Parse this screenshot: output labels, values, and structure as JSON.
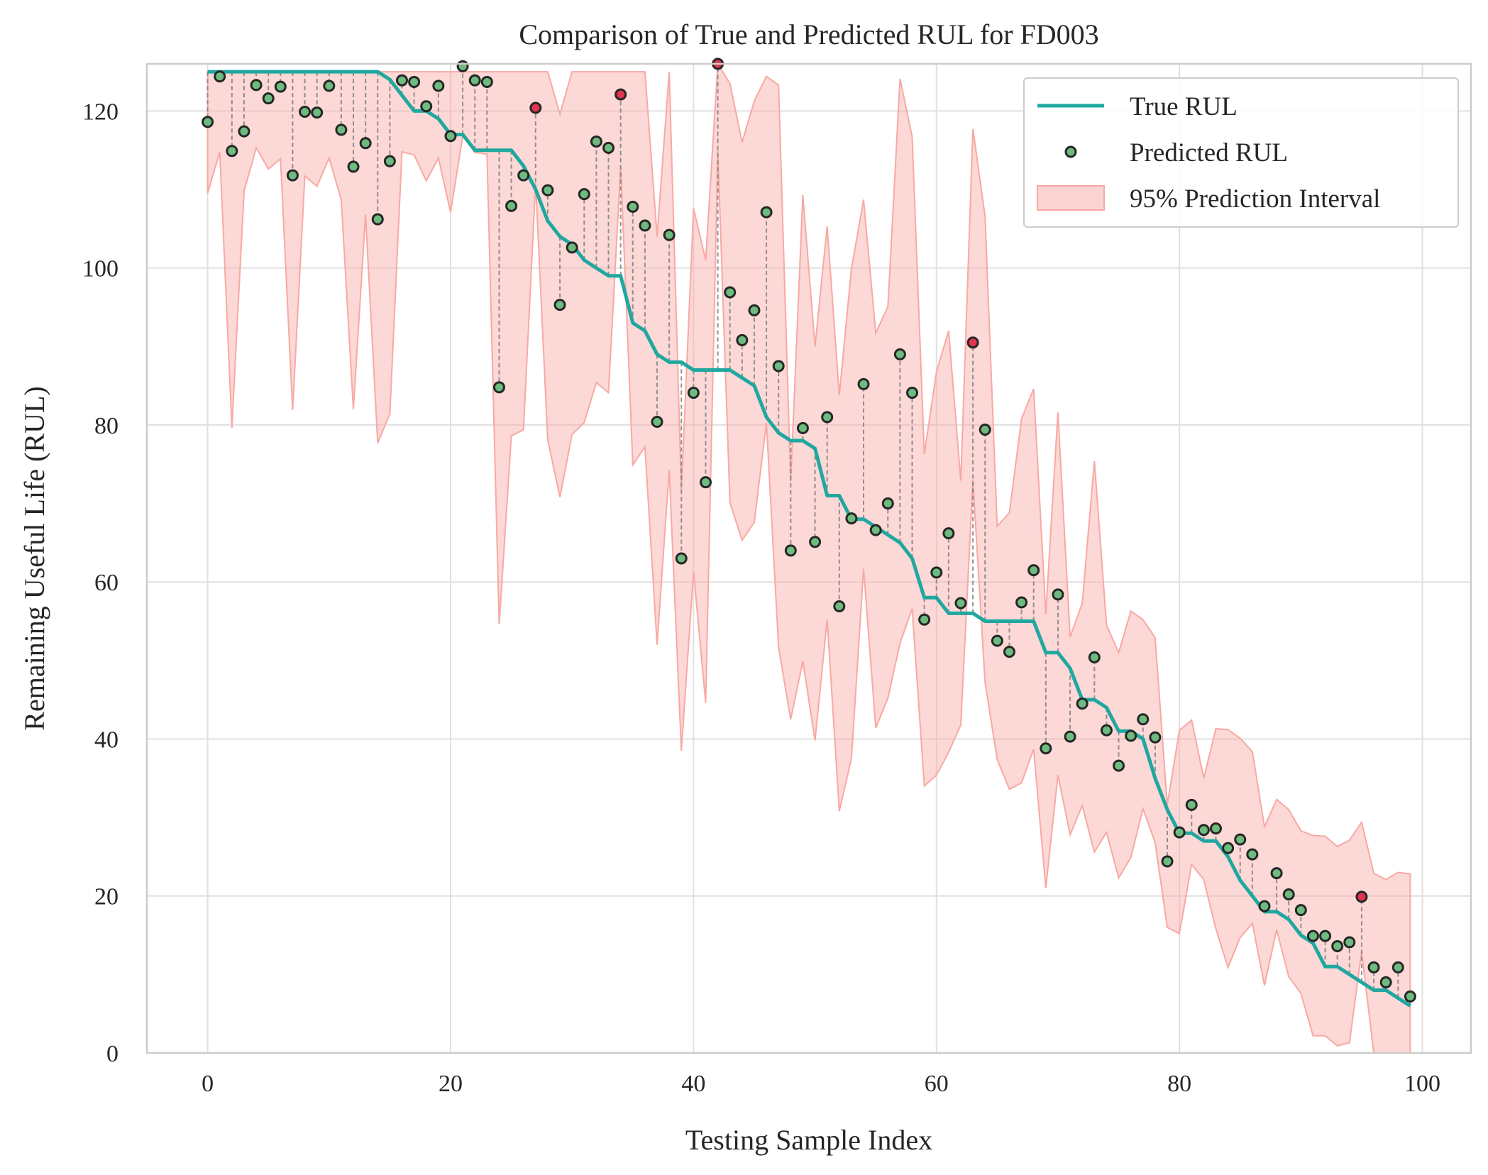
{
  "chart_data": {
    "type": "line",
    "title": "Comparison of True and Predicted RUL for FD003",
    "xlabel": "Testing Sample Index",
    "ylabel": "Remaining Useful Life (RUL)",
    "xlim": [
      -5,
      104
    ],
    "ylim": [
      0,
      126
    ],
    "xticks": [
      0,
      20,
      40,
      60,
      80,
      100
    ],
    "yticks": [
      0,
      20,
      40,
      60,
      80,
      100,
      120
    ],
    "grid": true,
    "legend_position": "top-right",
    "legend": [
      "True RUL",
      "Predicted RUL",
      "95% Prediction Interval"
    ],
    "colors": {
      "true": "#20a8a0",
      "predicted": "#6dbb7f",
      "outlier": "#e0344f",
      "interval": "#f8a9a3",
      "marker_edge": "#262626",
      "grid": "#e0e0e0",
      "frame": "#cccccc"
    },
    "x": [
      0,
      1,
      2,
      3,
      4,
      5,
      6,
      7,
      8,
      9,
      10,
      11,
      12,
      13,
      14,
      15,
      16,
      17,
      18,
      19,
      20,
      21,
      22,
      23,
      24,
      25,
      26,
      27,
      28,
      29,
      30,
      31,
      32,
      33,
      34,
      35,
      36,
      37,
      38,
      39,
      40,
      41,
      42,
      43,
      44,
      45,
      46,
      47,
      48,
      49,
      50,
      51,
      52,
      53,
      54,
      55,
      56,
      57,
      58,
      59,
      60,
      61,
      62,
      63,
      64,
      65,
      66,
      67,
      68,
      69,
      70,
      71,
      72,
      73,
      74,
      75,
      76,
      77,
      78,
      79,
      80,
      81,
      82,
      83,
      84,
      85,
      86,
      87,
      88,
      89,
      90,
      91,
      92,
      93,
      94,
      95,
      96,
      97,
      98,
      99
    ],
    "series": [
      {
        "name": "True RUL",
        "values": [
          125,
          125,
          125,
          125,
          125,
          125,
          125,
          125,
          125,
          125,
          125,
          125,
          125,
          125,
          125,
          124,
          122,
          120,
          120,
          119,
          117,
          117,
          115,
          115,
          115,
          115,
          113,
          110,
          106,
          104,
          103,
          101,
          100,
          99,
          99,
          93,
          92,
          89,
          88,
          88,
          87,
          87,
          87,
          87,
          86,
          85,
          81,
          79,
          78,
          78,
          77,
          71,
          71,
          68,
          68,
          67,
          66,
          65,
          63,
          58,
          58,
          56,
          56,
          56,
          55,
          55,
          55,
          55,
          55,
          51,
          51,
          49,
          45,
          45,
          44,
          41,
          41,
          40,
          35,
          31,
          28,
          28,
          27,
          27,
          25,
          22,
          20,
          18,
          18,
          17,
          15,
          14,
          11,
          11,
          10,
          9,
          8,
          8,
          7,
          6
        ]
      },
      {
        "name": "Predicted RUL",
        "values": [
          118.6,
          124.4,
          114.9,
          117.4,
          123.3,
          121.6,
          123.1,
          111.8,
          119.9,
          119.8,
          123.2,
          117.6,
          112.9,
          115.9,
          106.2,
          113.6,
          123.9,
          123.7,
          120.6,
          123.2,
          116.8,
          125.7,
          123.9,
          123.7,
          84.8,
          107.9,
          111.8,
          120.4,
          109.9,
          95.3,
          102.6,
          109.4,
          116.1,
          115.3,
          122.1,
          107.8,
          105.4,
          80.4,
          104.2,
          63.0,
          84.1,
          72.7,
          126.0,
          96.9,
          90.8,
          94.6,
          107.1,
          87.5,
          64.0,
          79.6,
          65.1,
          81.0,
          56.9,
          68.1,
          85.2,
          66.6,
          70.0,
          89.0,
          84.1,
          55.2,
          61.2,
          66.2,
          57.3,
          90.5,
          79.4,
          52.5,
          51.1,
          57.4,
          61.5,
          38.8,
          58.4,
          40.3,
          44.5,
          50.4,
          41.1,
          36.6,
          40.4,
          42.5,
          40.2,
          24.4,
          28.1,
          31.6,
          28.4,
          28.6,
          26.1,
          27.2,
          25.3,
          18.7,
          22.9,
          20.2,
          18.2,
          14.9,
          14.9,
          13.6,
          14.1,
          19.9,
          10.9,
          9.0,
          10.9,
          7.2
        ]
      },
      {
        "name": "95% Prediction Interval",
        "lower": [
          109.5,
          114.8,
          79.6,
          109.8,
          115.3,
          112.6,
          113.9,
          81.9,
          111.7,
          110.4,
          114.0,
          108.7,
          82.0,
          106.8,
          77.7,
          81.4,
          114.8,
          114.4,
          111.1,
          114.0,
          107.1,
          116.8,
          114.7,
          114.5,
          54.6,
          78.6,
          79.4,
          110.8,
          78.1,
          70.8,
          78.8,
          80.3,
          85.4,
          84.1,
          112.9,
          74.9,
          77.2,
          52.0,
          74.3,
          38.5,
          61.3,
          44.6,
          115.0,
          70.1,
          65.3,
          67.6,
          80.3,
          51.7,
          42.5,
          49.9,
          39.8,
          55.2,
          30.8,
          37.5,
          61.7,
          41.4,
          45.2,
          52.2,
          56.6,
          34.0,
          35.4,
          38.3,
          41.8,
          73.0,
          47.2,
          37.4,
          33.6,
          34.4,
          38.7,
          21.0,
          35.4,
          27.8,
          31.5,
          25.6,
          28.1,
          22.3,
          24.9,
          31.1,
          26.8,
          16.0,
          15.2,
          24.0,
          22.1,
          15.8,
          10.9,
          14.7,
          16.5,
          8.6,
          15.7,
          9.7,
          7.6,
          2.2,
          2.2,
          0.9,
          1.3,
          12.9,
          0.0,
          0.0,
          0.0,
          0.0
        ],
        "upper": [
          125.0,
          125.0,
          125.0,
          125.0,
          125.0,
          125.0,
          125.0,
          125.0,
          125.0,
          125.0,
          125.0,
          125.0,
          125.0,
          125.0,
          125.0,
          125.0,
          125.0,
          125.0,
          125.0,
          125.0,
          125.0,
          125.0,
          125.0,
          125.0,
          125.0,
          125.0,
          125.0,
          125.0,
          125.0,
          119.6,
          125.0,
          125.0,
          125.0,
          125.0,
          125.0,
          125.0,
          125.0,
          104.0,
          125.0,
          71.6,
          107.6,
          101.0,
          126.0,
          123.5,
          116.0,
          121.3,
          124.4,
          123.3,
          72.8,
          109.3,
          90.0,
          105.3,
          83.8,
          99.9,
          108.7,
          91.7,
          95.1,
          124.1,
          116.7,
          76.3,
          86.8,
          92.0,
          72.9,
          117.7,
          106.6,
          67.1,
          68.8,
          80.8,
          84.6,
          55.9,
          81.6,
          53.0,
          57.3,
          75.4,
          54.5,
          51.0,
          56.3,
          55.2,
          52.9,
          31.6,
          41.1,
          42.4,
          35.0,
          41.3,
          41.2,
          40.1,
          38.4,
          28.8,
          32.3,
          31.0,
          28.3,
          27.7,
          27.6,
          26.3,
          27.1,
          29.4,
          22.9,
          22.1,
          23.0,
          22.8
        ]
      }
    ],
    "outlier_indices": [
      27,
      34,
      42,
      63,
      95
    ]
  }
}
